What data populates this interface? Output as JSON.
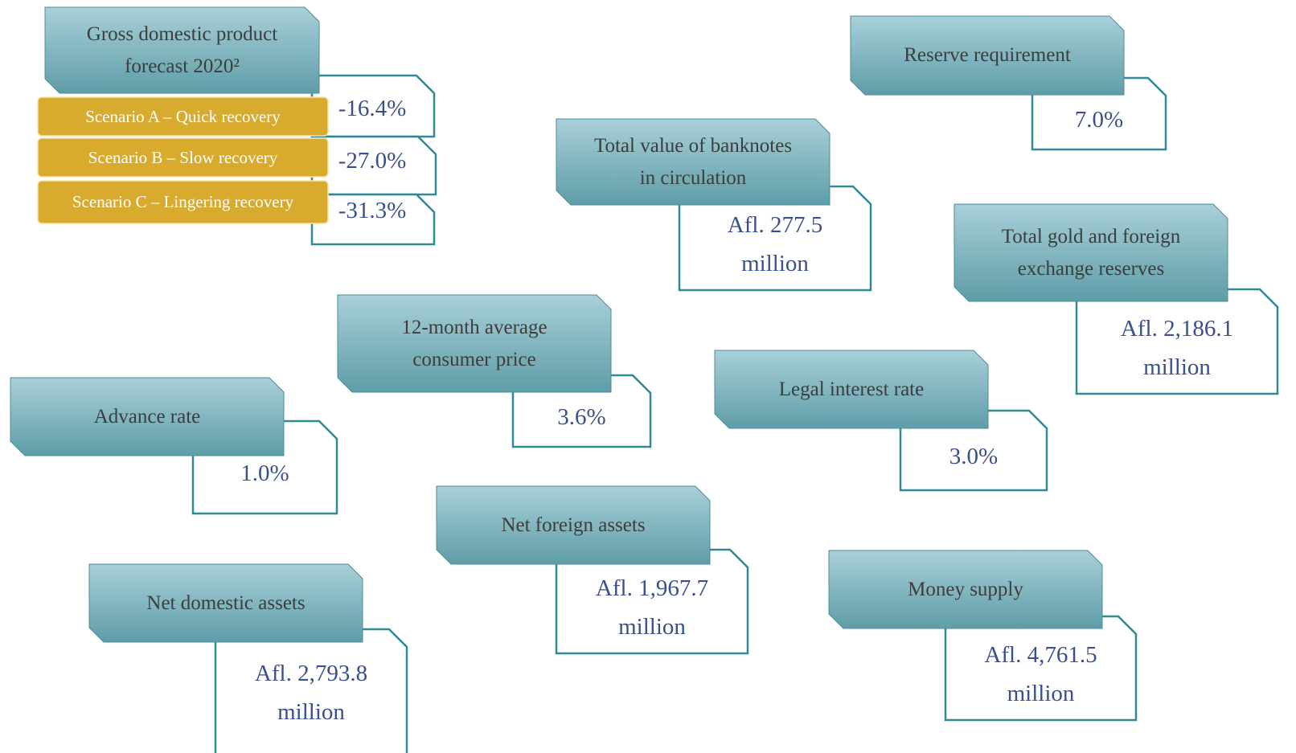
{
  "gdp": {
    "title": "Gross domestic product forecast 2020²",
    "scenarios": [
      {
        "label": "Scenario A – Quick recovery",
        "value": "-16.4%"
      },
      {
        "label": "Scenario B – Slow recovery",
        "value": "-27.0%"
      },
      {
        "label": "Scenario C – Lingering recovery",
        "value": "-31.3%"
      }
    ]
  },
  "cards": [
    {
      "title": "Reserve requirement",
      "value": "7.0%"
    },
    {
      "title": "Total value of banknotes in circulation",
      "value": "Afl. 277.5 million"
    },
    {
      "title": "Total gold and foreign exchange reserves",
      "value": "Afl. 2,186.1 million"
    },
    {
      "title": "12-month average consumer price",
      "value": "3.6%"
    },
    {
      "title": "Legal interest rate",
      "value": "3.0%"
    },
    {
      "title": "Advance rate",
      "value": "1.0%"
    },
    {
      "title": "Net foreign assets",
      "value": "Afl. 1,967.7 million"
    },
    {
      "title": "Money supply",
      "value": "Afl. 4,761.5 million"
    },
    {
      "title": "Net domestic assets",
      "value": "Afl. 2,793.8 million"
    }
  ]
}
